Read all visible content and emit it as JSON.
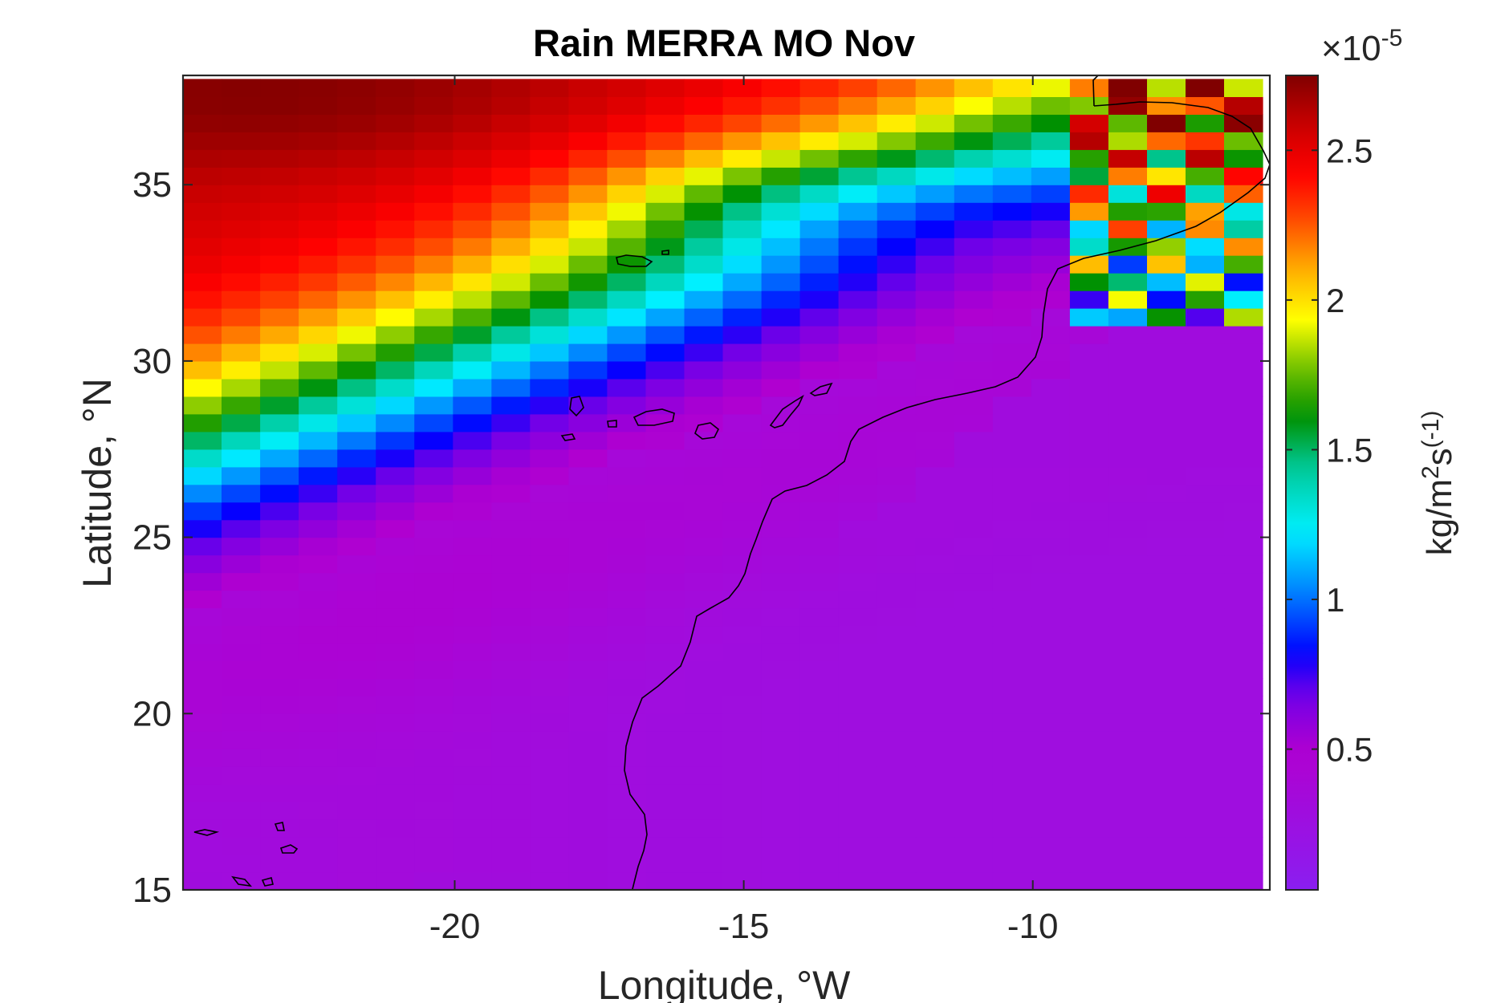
{
  "chart_data": {
    "type": "heatmap",
    "title": "Rain MERRA MO Nov",
    "xlabel": "Longitude, °W",
    "ylabel": "Latitude, °N",
    "xlim": [
      -24.7,
      -5.9
    ],
    "ylim": [
      15,
      38.1
    ],
    "x_ticks": [
      -20,
      -15,
      -10
    ],
    "x_tick_labels": [
      "-20",
      "-15",
      "-10"
    ],
    "y_ticks": [
      15,
      20,
      25,
      30,
      35
    ],
    "y_tick_labels": [
      "15",
      "20",
      "25",
      "30",
      "35"
    ],
    "grid": false,
    "colormap": "jet-like with magenta low end",
    "colorbar": {
      "label": "kg/m²s⁽-1)",
      "label_parts": [
        "kg/m",
        "2",
        "s",
        "(-1)"
      ],
      "multiplier": "×10⁻⁵",
      "multiplier_parts": [
        "×10",
        "-5"
      ],
      "range": [
        0.03,
        2.75
      ],
      "ticks": [
        0.5,
        1,
        1.5,
        2,
        2.5
      ],
      "tick_labels": [
        "0.5",
        "1",
        "1.5",
        "2",
        "2.5"
      ],
      "color_stops": [
        [
          0.0,
          "#8a1ef0"
        ],
        [
          0.17,
          "#b000d0"
        ],
        [
          0.24,
          "#7000e8"
        ],
        [
          0.29,
          "#0000ff"
        ],
        [
          0.37,
          "#0088ff"
        ],
        [
          0.44,
          "#00f0ff"
        ],
        [
          0.52,
          "#00c896"
        ],
        [
          0.58,
          "#009000"
        ],
        [
          0.64,
          "#70c000"
        ],
        [
          0.7,
          "#ffff00"
        ],
        [
          0.76,
          "#ffb000"
        ],
        [
          0.83,
          "#ff4000"
        ],
        [
          0.88,
          "#ff0000"
        ],
        [
          0.94,
          "#c80000"
        ],
        [
          1.0,
          "#800000"
        ]
      ]
    },
    "grid_spec": {
      "lon_min": -24.7,
      "lon_step": 0.667,
      "n_cols": 28,
      "lat_min": 15.0,
      "lat_step": 0.5,
      "n_rows": 46
    },
    "field_description": "Precipitation rate (×10⁻⁵ kg m⁻² s⁻¹) over NW Africa / NE Atlantic: a band of high rain in the north (up to ~2.7) decaying southward to low values (~0.2-0.5) across the south; a frontal band curving from ~25°N at -24.7° to ~33°N near -10°; coastline and islands drawn as black lines."
  }
}
